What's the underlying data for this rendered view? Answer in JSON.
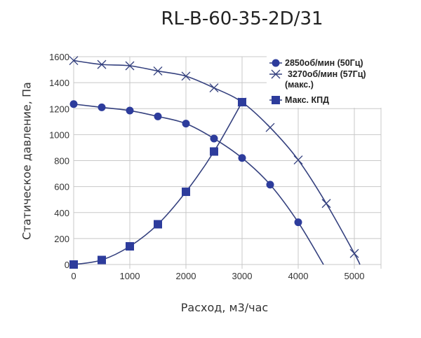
{
  "chart_data": {
    "type": "line",
    "title": "RL-B-60-35-2D/31",
    "xlabel": "Расход, м3/час",
    "ylabel": "Статическое давление, Па",
    "xlim": [
      0,
      5450
    ],
    "ylim": [
      0,
      1600
    ],
    "xticks": [
      "0",
      "1000",
      "2000",
      "3000",
      "4000",
      "5000"
    ],
    "yticks": [
      "0",
      "200",
      "400",
      "600",
      "800",
      "1000",
      "1200",
      "1400",
      "1600"
    ],
    "grid": true,
    "legend_position": "top-right",
    "colors": {
      "line": "#34407e",
      "marker": "#2d3c9c",
      "grid": "#c8c8c8"
    },
    "series": [
      {
        "name": "2850об/мин (50Гц)",
        "marker": "circle",
        "x": [
          0,
          500,
          1000,
          1500,
          2000,
          2500,
          3000,
          3500,
          4000,
          4450
        ],
        "y": [
          1235,
          1210,
          1185,
          1140,
          1085,
          970,
          820,
          615,
          325,
          0
        ],
        "markers_count": 9
      },
      {
        "name": "3270об/мин  (57Гц)",
        "name_line2": "(макс.)",
        "marker": "x",
        "x": [
          0,
          500,
          1000,
          1500,
          2000,
          2500,
          3000,
          3500,
          4000,
          4500,
          5000,
          5100
        ],
        "y": [
          1570,
          1540,
          1530,
          1490,
          1450,
          1360,
          1250,
          1055,
          805,
          470,
          85,
          0
        ],
        "markers_count": 11
      },
      {
        "name": "Макс. КПД",
        "marker": "square",
        "x": [
          0,
          500,
          1000,
          1500,
          2000,
          2500,
          3000
        ],
        "y": [
          0,
          35,
          140,
          310,
          560,
          870,
          1250
        ],
        "markers_count": 7
      }
    ]
  }
}
